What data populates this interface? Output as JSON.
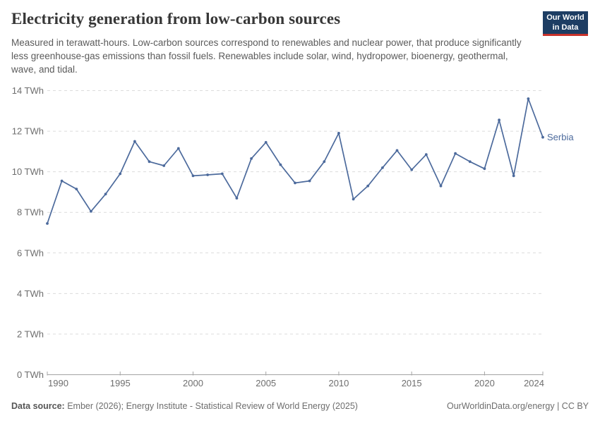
{
  "header": {
    "title": "Electricity generation from low-carbon sources",
    "subtitle": "Measured in terawatt-hours. Low-carbon sources correspond to renewables and nuclear power, that produce significantly less greenhouse-gas emissions than fossil fuels. Renewables include solar, wind, hydropower, bioenergy, geothermal, wave, and tidal.",
    "logo": {
      "line1": "Our World",
      "line2": "in Data",
      "bg_color": "#1d3d63",
      "accent_color": "#c8322b"
    }
  },
  "chart_data": {
    "type": "line",
    "title": "Electricity generation from low-carbon sources",
    "unit": "TWh",
    "x": [
      1990,
      1991,
      1992,
      1993,
      1994,
      1995,
      1996,
      1997,
      1998,
      1999,
      2000,
      2001,
      2002,
      2003,
      2004,
      2005,
      2006,
      2007,
      2008,
      2009,
      2010,
      2011,
      2012,
      2013,
      2014,
      2015,
      2016,
      2017,
      2018,
      2019,
      2020,
      2021,
      2022,
      2023,
      2024
    ],
    "series": [
      {
        "name": "Serbia",
        "color": "#4c6a9c",
        "values": [
          7.45,
          9.55,
          9.15,
          8.05,
          8.9,
          9.9,
          11.5,
          10.5,
          10.3,
          11.15,
          9.8,
          9.85,
          9.9,
          8.7,
          10.65,
          11.45,
          10.35,
          9.45,
          9.55,
          10.5,
          11.9,
          8.65,
          9.3,
          10.2,
          11.05,
          10.1,
          10.85,
          9.3,
          10.9,
          10.5,
          10.15,
          12.55,
          9.8,
          13.6,
          11.7
        ]
      }
    ],
    "ylim": [
      0,
      14
    ],
    "yticks": [
      0,
      2,
      4,
      6,
      8,
      10,
      12,
      14
    ],
    "ytick_suffix": " TWh",
    "xticks": [
      1990,
      1995,
      2000,
      2005,
      2010,
      2015,
      2020,
      2024
    ],
    "grid": "horizontal-dashed",
    "end_label": "Serbia",
    "axis_color": "#a3a3a3",
    "gridline_color": "#dcdcdc",
    "tick_label_color": "#6e6e6e"
  },
  "footer": {
    "datasource_label": "Data source:",
    "datasource_text": " Ember (2026); Energy Institute - Statistical Review of World Energy (2025)",
    "credit": "OurWorldinData.org/energy | CC BY"
  }
}
